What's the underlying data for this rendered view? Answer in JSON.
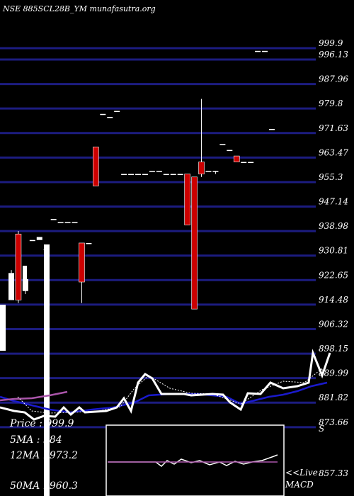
{
  "chart_data": {
    "type": "candlestick",
    "title": "NSE 885SCL28B_YM munafasutra.org",
    "y_ticks": [
      "999.9",
      "996.13",
      "987.96",
      "979.8",
      "971.63",
      "963.47",
      "955.3",
      "947.14",
      "938.98",
      "930.81",
      "922.65",
      "914.48",
      "906.32",
      "898.15",
      "889.99",
      "881.82",
      "873.66",
      "857.33"
    ],
    "y_tick_values": [
      999.9,
      996.13,
      987.96,
      979.8,
      971.63,
      963.47,
      955.3,
      947.14,
      938.98,
      930.81,
      922.65,
      914.48,
      906.32,
      898.15,
      889.99,
      881.82,
      873.66,
      857.33
    ],
    "ylim": [
      850,
      1004
    ],
    "candles": [
      {
        "o": 925,
        "h": 926,
        "l": 916,
        "c": 916,
        "color": "white"
      },
      {
        "o": 916,
        "h": 939,
        "l": 915,
        "c": 938,
        "color": "red"
      },
      {
        "o": 923,
        "h": 923,
        "l": 918,
        "c": 919,
        "color": "white"
      },
      {
        "o": 936,
        "h": 936,
        "l": 936,
        "c": 936,
        "color": "white"
      },
      {
        "o": 936,
        "h": 937,
        "l": 937,
        "c": 937,
        "color": "white"
      },
      {
        "o": 933,
        "h": 933,
        "l": 933,
        "c": 933,
        "color": "white"
      },
      {
        "o": 943,
        "h": 943,
        "l": 943,
        "c": 943,
        "color": "white"
      },
      {
        "o": 942,
        "h": 942,
        "l": 942,
        "c": 942,
        "color": "white"
      },
      {
        "o": 942,
        "h": 942,
        "l": 942,
        "c": 942,
        "color": "white"
      },
      {
        "o": 942,
        "h": 942,
        "l": 942,
        "c": 942,
        "color": "white"
      },
      {
        "o": 922,
        "h": 934,
        "l": 915,
        "c": 935,
        "color": "red"
      },
      {
        "o": 935,
        "h": 935,
        "l": 935,
        "c": 935,
        "color": "white"
      },
      {
        "o": 954,
        "h": 967,
        "l": 954,
        "c": 967,
        "color": "red"
      },
      {
        "o": 978,
        "h": 978,
        "l": 978,
        "c": 978,
        "color": "white"
      },
      {
        "o": 977,
        "h": 977,
        "l": 977,
        "c": 977,
        "color": "white"
      },
      {
        "o": 979,
        "h": 979,
        "l": 979,
        "c": 979,
        "color": "white"
      },
      {
        "o": 958,
        "h": 958,
        "l": 958,
        "c": 958,
        "color": "white"
      },
      {
        "o": 958,
        "h": 958,
        "l": 958,
        "c": 958,
        "color": "white"
      },
      {
        "o": 958,
        "h": 958,
        "l": 958,
        "c": 958,
        "color": "white"
      },
      {
        "o": 958,
        "h": 958,
        "l": 958,
        "c": 958,
        "color": "white"
      },
      {
        "o": 959,
        "h": 959,
        "l": 959,
        "c": 959,
        "color": "white"
      },
      {
        "o": 959,
        "h": 959,
        "l": 959,
        "c": 959,
        "color": "white"
      },
      {
        "o": 958,
        "h": 958,
        "l": 958,
        "c": 958,
        "color": "white"
      },
      {
        "o": 958,
        "h": 958,
        "l": 958,
        "c": 958,
        "color": "white"
      },
      {
        "o": 958,
        "h": 958,
        "l": 958,
        "c": 958,
        "color": "white"
      },
      {
        "o": 941,
        "h": 958,
        "l": 941,
        "c": 958,
        "color": "red"
      },
      {
        "o": 913,
        "h": 957,
        "l": 913,
        "c": 957,
        "color": "red"
      },
      {
        "o": 962,
        "h": 983,
        "l": 957,
        "c": 958,
        "color": "red"
      },
      {
        "o": 959,
        "h": 959,
        "l": 959,
        "c": 959,
        "color": "white"
      },
      {
        "o": 959,
        "h": 959,
        "l": 958,
        "c": 959,
        "color": "white"
      },
      {
        "o": 968,
        "h": 968,
        "l": 968,
        "c": 968,
        "color": "white"
      },
      {
        "o": 966,
        "h": 966,
        "l": 966,
        "c": 966,
        "color": "white"
      },
      {
        "o": 962,
        "h": 964,
        "l": 962,
        "c": 964,
        "color": "red"
      },
      {
        "o": 962,
        "h": 962,
        "l": 962,
        "c": 962,
        "color": "white"
      },
      {
        "o": 962,
        "h": 962,
        "l": 962,
        "c": 962,
        "color": "white"
      },
      {
        "o": 999,
        "h": 999,
        "l": 999,
        "c": 999,
        "color": "white"
      },
      {
        "o": 999,
        "h": 999,
        "l": 999,
        "c": 999,
        "color": "white"
      },
      {
        "o": 973,
        "h": 973,
        "l": 973,
        "c": 973,
        "color": "white"
      }
    ],
    "stats": [
      {
        "label": "Price",
        "value": "999.9"
      },
      {
        "label": "5MA",
        "value": "984"
      },
      {
        "label": "12MA",
        "value": "973.2"
      },
      {
        "label": "50MA",
        "value": "960.3"
      }
    ],
    "indicator_labels": [
      "S",
      "<<Live",
      "MACD"
    ],
    "colors": {
      "background": "#000000",
      "grid": "#1c1c80",
      "candle_down": "#cc0000",
      "candle_up": "#ffffff",
      "ma_blue": "#1a1acc",
      "ma_purple": "#aa55aa",
      "macd_box": "#ffffff"
    }
  }
}
